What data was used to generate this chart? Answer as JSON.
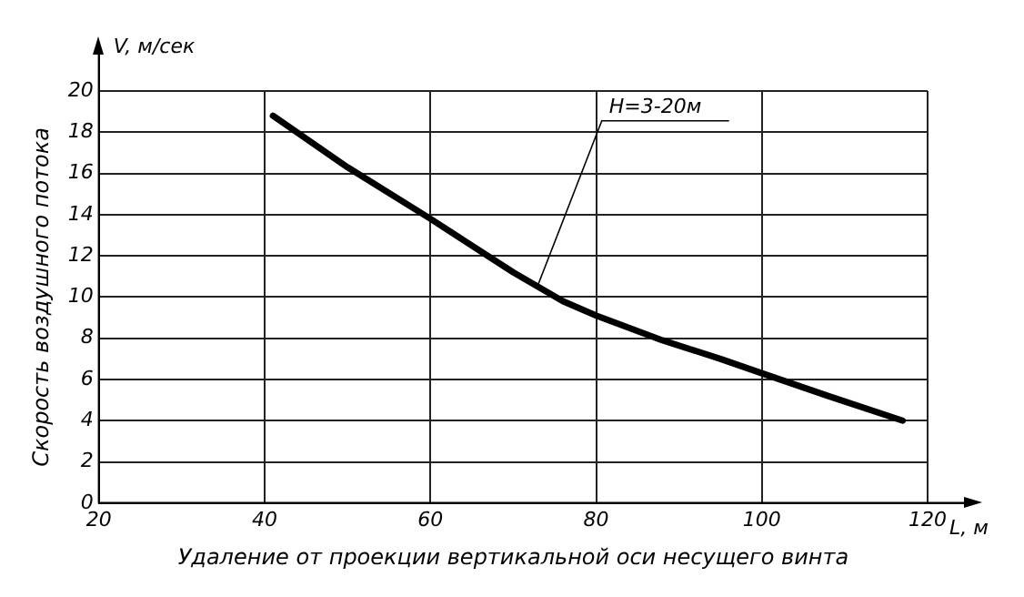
{
  "chart_data": {
    "type": "line",
    "ylabel": "Скорость воздушного потока",
    "xlabel": "Удаление от проекции вертикальной оси несущего винта",
    "x": [
      41,
      50,
      60,
      70,
      76,
      80,
      88,
      95,
      100,
      108,
      117
    ],
    "series": [
      {
        "color": "#000000",
        "values": [
          18.8,
          16.3,
          13.8,
          11.2,
          9.8,
          9.1,
          7.9,
          7,
          6.3,
          5.2,
          4.0
        ]
      }
    ],
    "xlim": [
      20,
      120
    ],
    "xticks": [
      20,
      40,
      60,
      80,
      100,
      120
    ],
    "ylim": [
      0,
      20
    ],
    "yticks": [
      0,
      2,
      4,
      6,
      8,
      10,
      12,
      14,
      16,
      18,
      20
    ],
    "grid": true,
    "legend": false,
    "marker": "none",
    "line_style": "solid",
    "annotations": [
      "V, м/сек",
      "L, м",
      {
        "text": "H=3-20м",
        "x": 73,
        "y": 10.6
      }
    ]
  }
}
